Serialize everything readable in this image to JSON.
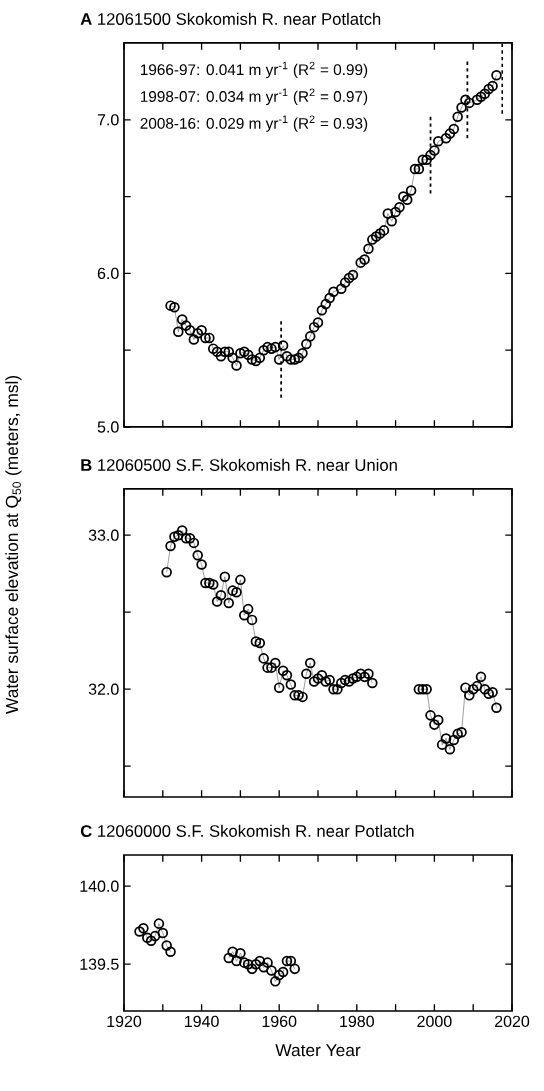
{
  "chart_data": [
    {
      "type": "line",
      "title": "**A** 12061500 Skokomish R. near Potlatch",
      "marker": "circle",
      "tick_labels": "y",
      "xlim": [
        1920,
        2020
      ],
      "xticks": [
        {
          "value": 1920,
          "label": null
        },
        {
          "value": 1930,
          "label": null
        },
        {
          "value": 1940,
          "label": null
        },
        {
          "value": 1950,
          "label": null
        },
        {
          "value": 1960,
          "label": null
        },
        {
          "value": 1970,
          "label": null
        },
        {
          "value": 1980,
          "label": null
        },
        {
          "value": 1990,
          "label": null
        },
        {
          "value": 2000,
          "label": null
        },
        {
          "value": 2010,
          "label": null
        },
        {
          "value": 2020,
          "label": null
        }
      ],
      "ylim": [
        5,
        7.5
      ],
      "yticks": [
        {
          "value": 5,
          "label": "5.0"
        },
        {
          "value": 5.5,
          "label": null
        },
        {
          "value": 6,
          "label": "6.0"
        },
        {
          "value": 6.5,
          "label": null
        },
        {
          "value": 7,
          "label": "7.0"
        }
      ],
      "x": [
        1932,
        1933,
        1934,
        1935,
        1936,
        1937,
        1938,
        1939,
        1940,
        1941,
        1942,
        1943,
        1944,
        1945,
        1946,
        1947,
        1948,
        1949,
        1950,
        1951,
        1952,
        1953,
        1954,
        1955,
        1956,
        1957,
        1958,
        1959,
        1960,
        1961,
        1962,
        1963,
        1964,
        1965,
        1966,
        1967,
        1968,
        1969,
        1970,
        1971,
        1972,
        1973,
        1974,
        1976,
        1977,
        1978,
        1979,
        1981,
        1982,
        1983,
        1984,
        1985,
        1986,
        1987,
        1988,
        1989,
        1990,
        1991,
        1992,
        1993,
        1994,
        1995,
        1996,
        1997,
        1998,
        1999,
        2000,
        2001,
        2003,
        2004,
        2005,
        2006,
        2007,
        2008,
        2009,
        2011,
        2012,
        2013,
        2014,
        2015,
        2016
      ],
      "series": [
        {
          "color": "#000000",
          "values": [
            5.79,
            5.78,
            5.62,
            5.7,
            5.66,
            5.63,
            5.57,
            5.61,
            5.63,
            5.58,
            5.58,
            5.51,
            5.49,
            5.46,
            5.49,
            5.49,
            5.45,
            5.4,
            5.48,
            5.49,
            5.47,
            5.44,
            5.43,
            5.45,
            5.5,
            5.52,
            5.51,
            5.52,
            5.44,
            5.53,
            5.46,
            5.44,
            5.44,
            5.45,
            5.48,
            5.54,
            5.59,
            5.65,
            5.68,
            5.76,
            5.8,
            5.84,
            5.88,
            5.9,
            5.94,
            5.97,
            5.99,
            6.07,
            6.09,
            6.16,
            6.22,
            6.24,
            6.26,
            6.28,
            6.39,
            6.34,
            6.4,
            6.43,
            6.5,
            6.48,
            6.54,
            6.68,
            6.68,
            6.74,
            6.74,
            6.77,
            6.8,
            6.86,
            6.88,
            6.91,
            6.94,
            7.02,
            7.08,
            7.13,
            7.11,
            7.13,
            7.15,
            7.17,
            7.2,
            7.22,
            7.29
          ]
        }
      ],
      "annotations": [
        "1966-97: 0.041 m yr$^{-1}$ (R$^{2}$ = 0.99)",
        "1998-07: 0.034 m yr$^{-1}$ (R$^{2}$ = 0.97)",
        "2008-16: 0.029 m yr$^{-1}$ (R$^{2}$ = 0.93)"
      ],
      "ref_lines": [
        {
          "axis": "x",
          "value": 1960.5,
          "line_style": "dashed"
        },
        {
          "axis": "x",
          "value": 1999,
          "line_style": "dashed"
        },
        {
          "axis": "x",
          "value": 2008.5,
          "line_style": "dashed"
        },
        {
          "axis": "x",
          "value": 2017.5,
          "line_style": "dashed"
        }
      ]
    },
    {
      "type": "line",
      "title": "**B** 12060500 S.F. Skokomish R. near Union",
      "marker": "circle",
      "tick_labels": "y",
      "ylabel": "Water surface elevation at Q$_{50}$ (meters, msl)",
      "xlim": [
        1920,
        2020
      ],
      "xticks": [
        {
          "value": 1920,
          "label": null
        },
        {
          "value": 1930,
          "label": null
        },
        {
          "value": 1940,
          "label": null
        },
        {
          "value": 1950,
          "label": null
        },
        {
          "value": 1960,
          "label": null
        },
        {
          "value": 1970,
          "label": null
        },
        {
          "value": 1980,
          "label": null
        },
        {
          "value": 1990,
          "label": null
        },
        {
          "value": 2000,
          "label": null
        },
        {
          "value": 2010,
          "label": null
        },
        {
          "value": 2020,
          "label": null
        }
      ],
      "ylim": [
        31.3,
        33.3
      ],
      "yticks": [
        {
          "value": 31.5,
          "label": null
        },
        {
          "value": 32,
          "label": "32.0"
        },
        {
          "value": 32.5,
          "label": null
        },
        {
          "value": 33,
          "label": "33.0"
        }
      ],
      "x": [
        1931,
        1932,
        1933,
        1934,
        1935,
        1936,
        1937,
        1938,
        1939,
        1940,
        1941,
        1942,
        1943,
        1944,
        1945,
        1946,
        1947,
        1948,
        1949,
        1950,
        1951,
        1952,
        1953,
        1954,
        1955,
        1956,
        1957,
        1958,
        1959,
        1960,
        1961,
        1962,
        1963,
        1964,
        1965,
        1966,
        1967,
        1968,
        1969,
        1970,
        1971,
        1972,
        1973,
        1974,
        1975,
        1976,
        1977,
        1978,
        1979,
        1980,
        1981,
        1982,
        1983,
        1984,
        1990,
        1996,
        1997,
        1998,
        1999,
        2000,
        2001,
        2002,
        2003,
        2004,
        2005,
        2006,
        2007,
        2008,
        2009,
        2010,
        2011,
        2012,
        2013,
        2014,
        2015,
        2016
      ],
      "series": [
        {
          "color": "#000000",
          "values": [
            32.76,
            32.93,
            32.99,
            33.0,
            33.03,
            32.98,
            32.98,
            32.95,
            32.87,
            32.81,
            32.69,
            32.69,
            32.68,
            32.57,
            32.61,
            32.73,
            32.56,
            32.64,
            32.63,
            32.71,
            32.48,
            32.52,
            32.45,
            32.31,
            32.3,
            32.2,
            32.14,
            32.14,
            32.17,
            32.01,
            32.12,
            32.09,
            32.03,
            31.96,
            31.96,
            31.95,
            32.1,
            32.17,
            32.05,
            32.07,
            32.09,
            32.05,
            32.06,
            32.0,
            32.0,
            32.04,
            32.06,
            32.05,
            32.07,
            32.08,
            32.1,
            32.08,
            32.1,
            32.04,
            null,
            32.0,
            32.0,
            32.0,
            31.83,
            31.77,
            31.8,
            31.64,
            31.68,
            31.61,
            31.67,
            31.71,
            31.72,
            32.01,
            31.96,
            32.0,
            32.02,
            32.08,
            32.0,
            31.97,
            31.98,
            31.88
          ]
        }
      ]
    },
    {
      "type": "line",
      "title": "**C** 12060000 S.F. Skokomish R. near Potlatch",
      "marker": "circle",
      "xlabel": "Water Year",
      "xlim": [
        1920,
        2020
      ],
      "xticks": [
        1920,
        {
          "value": 1930,
          "label": null
        },
        1940,
        {
          "value": 1950,
          "label": null
        },
        1960,
        {
          "value": 1970,
          "label": null
        },
        1980,
        {
          "value": 1990,
          "label": null
        },
        2000,
        {
          "value": 2010,
          "label": null
        },
        2020
      ],
      "ylim": [
        139.2,
        140.2
      ],
      "yticks": [
        {
          "value": 139.5,
          "label": "139.5"
        },
        {
          "value": 140,
          "label": "140.0"
        }
      ],
      "x": [
        1924,
        1925,
        1926,
        1927,
        1928,
        1929,
        1930,
        1931,
        1932,
        1940,
        1947,
        1948,
        1949,
        1950,
        1951,
        1952,
        1953,
        1954,
        1955,
        1956,
        1957,
        1958,
        1959,
        1960,
        1961,
        1962,
        1963,
        1964
      ],
      "series": [
        {
          "color": "#000000",
          "values": [
            139.71,
            139.73,
            139.67,
            139.65,
            139.68,
            139.76,
            139.7,
            139.62,
            139.58,
            null,
            139.54,
            139.58,
            139.52,
            139.57,
            139.51,
            139.5,
            139.47,
            139.5,
            139.52,
            139.48,
            139.51,
            139.46,
            139.39,
            139.43,
            139.45,
            139.52,
            139.52,
            139.47
          ]
        }
      ]
    }
  ]
}
